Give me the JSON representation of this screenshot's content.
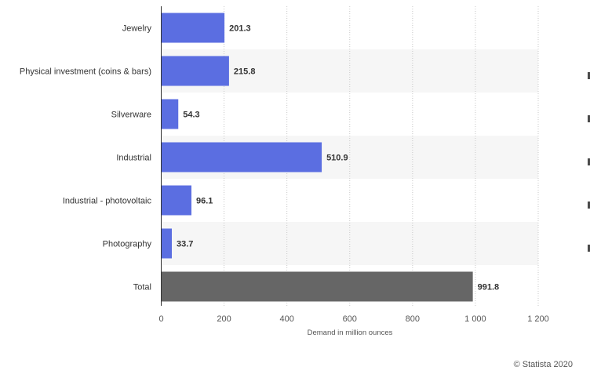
{
  "chart_data": {
    "type": "bar",
    "orientation": "horizontal",
    "categories": [
      "Jewelry",
      "Physical investment (coins & bars)",
      "Silverware",
      "Industrial",
      "Industrial - photovoltaic",
      "Photography",
      "Total"
    ],
    "values": [
      201.3,
      215.8,
      54.3,
      510.9,
      96.1,
      33.7,
      991.8
    ],
    "value_labels": [
      "201.3",
      "215.8",
      "54.3",
      "510.9",
      "96.1",
      "33.7",
      "991.8"
    ],
    "xlabel": "Demand in million ounces",
    "ylabel": "",
    "xlim": [
      0,
      1200
    ],
    "x_ticks": [
      0,
      200,
      400,
      600,
      800,
      1000,
      1200
    ],
    "x_tick_labels": [
      "0",
      "200",
      "400",
      "600",
      "800",
      "1 000",
      "1 200"
    ],
    "grid": true,
    "colors": {
      "bar": "#5b6ee1",
      "total_bar": "#666666",
      "band": "#f6f6f6"
    }
  },
  "credit": "© Statista 2020"
}
